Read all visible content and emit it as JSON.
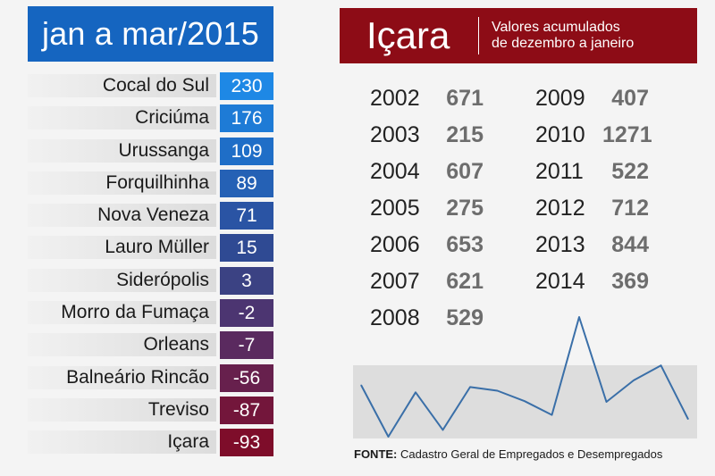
{
  "left": {
    "title": "jan a mar/2015",
    "rows": [
      {
        "name": "Cocal do Sul",
        "value": "230",
        "color": "#1e88e5"
      },
      {
        "name": "Criciúma",
        "value": "176",
        "color": "#1e7bd6"
      },
      {
        "name": "Urussanga",
        "value": "109",
        "color": "#1f6ec7"
      },
      {
        "name": "Forquilhinha",
        "value": "89",
        "color": "#2561b5"
      },
      {
        "name": "Nova Veneza",
        "value": "71",
        "color": "#2a54a4"
      },
      {
        "name": "Lauro Müller",
        "value": "15",
        "color": "#2f4a93"
      },
      {
        "name": "Siderópolis",
        "value": "3",
        "color": "#3b4283"
      },
      {
        "name": "Morro da Fumaça",
        "value": "-2",
        "color": "#4c3571"
      },
      {
        "name": "Orleans",
        "value": "-7",
        "color": "#5a2a5f"
      },
      {
        "name": "Balneário Rincão",
        "value": "-56",
        "color": "#67204d"
      },
      {
        "name": "Treviso",
        "value": "-87",
        "color": "#73163b"
      },
      {
        "name": "Içara",
        "value": "-93",
        "color": "#7e0d2a"
      }
    ]
  },
  "right": {
    "title": "Içara",
    "subtitle_line1": "Valores acumulados",
    "subtitle_line2": "de dezembro a janeiro",
    "source_label": "FONTE:",
    "source_text": " Cadastro Geral de Empregados e Desempregados"
  },
  "chart_data": {
    "type": "line",
    "x": [
      "2002",
      "2003",
      "2004",
      "2005",
      "2006",
      "2007",
      "2008",
      "2009",
      "2010",
      "2011",
      "2012",
      "2013",
      "2014"
    ],
    "values": [
      671,
      215,
      607,
      275,
      653,
      621,
      529,
      407,
      1271,
      522,
      712,
      844,
      369
    ]
  }
}
